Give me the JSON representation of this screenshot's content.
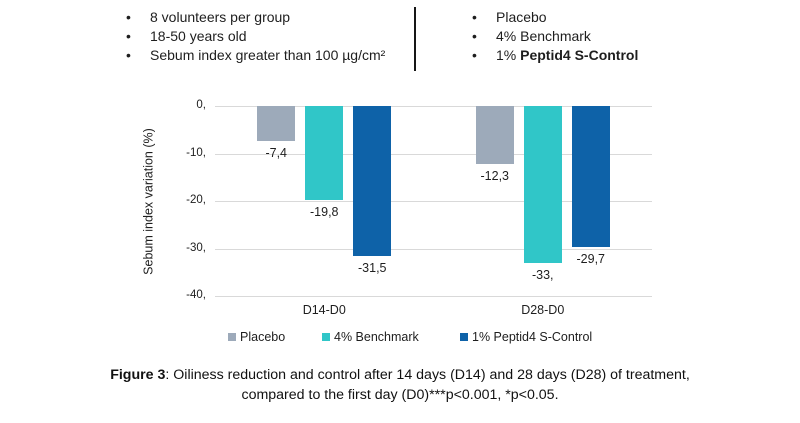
{
  "criteria": {
    "items": [
      "8 volunteers per group",
      "18-50 years old",
      "Sebum index greater than 100 µg/cm²"
    ]
  },
  "groups": {
    "items": [
      {
        "text": "Placebo",
        "bold": ""
      },
      {
        "text": "4% Benchmark",
        "bold": ""
      },
      {
        "text": "1% ",
        "bold": "Peptid4 S-Control"
      }
    ]
  },
  "chart_data": {
    "type": "bar",
    "title": "",
    "xlabel": "",
    "ylabel": "Sebum index variation (%)",
    "ylim": [
      -40,
      0
    ],
    "yticks": [
      0,
      -10,
      -20,
      -30,
      -40
    ],
    "ytick_labels": [
      "0,",
      "-10,",
      "-20,",
      "-30,",
      "-40,"
    ],
    "categories": [
      "D14-D0",
      "D28-D0"
    ],
    "series": [
      {
        "name": "Placebo",
        "color": "#9DAABA",
        "values": [
          -7.4,
          -12.3
        ],
        "labels": [
          "-7,4",
          "-12,3"
        ]
      },
      {
        "name": "4% Benchmark",
        "color": "#30C6C8",
        "values": [
          -19.8,
          -33.0
        ],
        "labels": [
          "-19,8",
          "-33,"
        ]
      },
      {
        "name": "1% Peptid4 S-Control",
        "color": "#0E62A8",
        "values": [
          -31.5,
          -29.7
        ],
        "labels": [
          "-31,5",
          "-29,7"
        ]
      }
    ],
    "grid": true,
    "legend_position": "bottom",
    "gridline_color": "#D9D9D9"
  },
  "caption": {
    "bold": "Figure 3",
    "line1": ": Oiliness reduction and control after 14 days (D14) and 28 days (D28) of treatment,",
    "line2": "compared to the first day (D0)***p<0.001, *p<0.05."
  }
}
